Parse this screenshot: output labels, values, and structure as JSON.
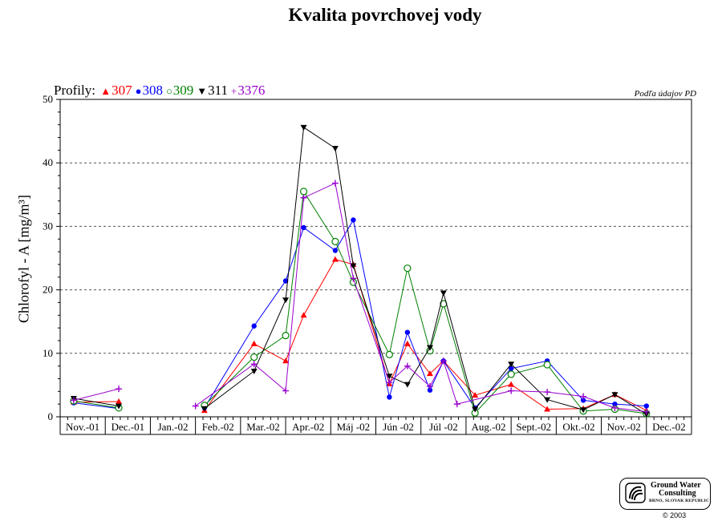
{
  "title": "Kvalita povrchovej vody",
  "source_note": "Podľa údajov PD",
  "legend": {
    "label": "Profily:",
    "items": [
      {
        "symbol": "▲",
        "name": "307",
        "color": "#ff0000"
      },
      {
        "symbol": "●",
        "name": "308",
        "color": "#0000ff"
      },
      {
        "symbol": "○",
        "name": "309",
        "color": "#008000"
      },
      {
        "symbol": "▼",
        "name": "311",
        "color": "#000000"
      },
      {
        "symbol": "+",
        "name": "3376",
        "color": "#9900cc"
      }
    ]
  },
  "logo": {
    "line1": "Ground Water",
    "line2": "Consulting",
    "line3": "BRNO, SLOVAK REPUBLIC"
  },
  "copyright": "© 2003",
  "chart_data": {
    "type": "line",
    "title": "Kvalita povrchovej vody",
    "ylabel": "Chlorofyl - A [mg/m³]",
    "xlabel": "",
    "ylim": [
      0,
      50
    ],
    "yticks": [
      0,
      10,
      20,
      30,
      40,
      50
    ],
    "grid": "horizontal dashed",
    "legend_position": "top-left",
    "categories": [
      "Nov.-01",
      "Dec.-01",
      "Jan.-02",
      "Feb.-02",
      "Mar.-02",
      "Apr.-02",
      "Máj -02",
      "Jún -02",
      "Júl -02",
      "Aug.-02",
      "Sept.-02",
      "Okt.-02",
      "Nov.-02",
      "Dec.-02"
    ],
    "series": [
      {
        "name": "307",
        "color": "#ff0000",
        "marker": "triangle-up",
        "points": [
          [
            0.3,
            2.3
          ],
          [
            1.3,
            2.4
          ],
          [
            3.2,
            1.0
          ],
          [
            4.3,
            11.5
          ],
          [
            5.0,
            8.8
          ],
          [
            5.4,
            16.0
          ],
          [
            6.1,
            24.8
          ],
          [
            6.5,
            24.0
          ],
          [
            7.3,
            5.2
          ],
          [
            7.7,
            11.5
          ],
          [
            8.2,
            6.8
          ],
          [
            8.5,
            8.8
          ],
          [
            9.2,
            3.4
          ],
          [
            10.0,
            5.1
          ],
          [
            10.8,
            1.2
          ],
          [
            11.6,
            1.3
          ],
          [
            12.3,
            3.5
          ],
          [
            13.0,
            1.0
          ]
        ],
        "breaks_after_index": [
          1
        ]
      },
      {
        "name": "308",
        "color": "#0000ff",
        "marker": "circle",
        "points": [
          [
            0.3,
            2.2
          ],
          [
            1.3,
            1.3
          ],
          [
            3.2,
            1.4
          ],
          [
            4.3,
            14.3
          ],
          [
            5.0,
            21.4
          ],
          [
            5.4,
            29.8
          ],
          [
            6.1,
            26.2
          ],
          [
            6.5,
            31.0
          ],
          [
            7.3,
            3.1
          ],
          [
            7.7,
            13.3
          ],
          [
            8.2,
            4.2
          ],
          [
            8.5,
            8.8
          ],
          [
            9.2,
            1.4
          ],
          [
            10.0,
            7.6
          ],
          [
            10.8,
            8.8
          ],
          [
            11.6,
            2.6
          ],
          [
            12.3,
            2.0
          ],
          [
            13.0,
            1.7
          ]
        ],
        "breaks_after_index": [
          1
        ]
      },
      {
        "name": "309",
        "color": "#008000",
        "marker": "open-circle",
        "points": [
          [
            0.3,
            2.5
          ],
          [
            1.3,
            1.4
          ],
          [
            3.2,
            1.8
          ],
          [
            4.3,
            9.4
          ],
          [
            5.0,
            12.8
          ],
          [
            5.4,
            35.5
          ],
          [
            6.1,
            27.6
          ],
          [
            6.5,
            21.2
          ],
          [
            7.3,
            9.8
          ],
          [
            7.7,
            23.4
          ],
          [
            8.2,
            10.4
          ],
          [
            8.5,
            17.8
          ],
          [
            9.2,
            0.6
          ],
          [
            10.0,
            6.7
          ],
          [
            10.8,
            8.2
          ],
          [
            11.6,
            0.9
          ],
          [
            12.3,
            1.2
          ],
          [
            13.0,
            0.5
          ]
        ],
        "breaks_after_index": [
          1
        ]
      },
      {
        "name": "311",
        "color": "#000000",
        "marker": "triangle-down",
        "points": [
          [
            0.3,
            2.9
          ],
          [
            1.3,
            1.7
          ],
          [
            3.2,
            1.3
          ],
          [
            4.3,
            7.2
          ],
          [
            5.0,
            18.4
          ],
          [
            5.4,
            45.6
          ],
          [
            6.1,
            42.3
          ],
          [
            6.5,
            23.8
          ],
          [
            7.3,
            6.4
          ],
          [
            7.7,
            5.1
          ],
          [
            8.2,
            10.9
          ],
          [
            8.5,
            19.5
          ],
          [
            9.2,
            1.2
          ],
          [
            10.0,
            8.3
          ],
          [
            10.8,
            2.7
          ],
          [
            11.6,
            1.1
          ],
          [
            12.3,
            3.5
          ],
          [
            13.0,
            0.4
          ]
        ],
        "breaks_after_index": [
          1
        ]
      },
      {
        "name": "3376",
        "color": "#9900cc",
        "marker": "plus",
        "points": [
          [
            0.3,
            2.6
          ],
          [
            1.3,
            4.4
          ],
          [
            3.0,
            1.7
          ],
          [
            4.3,
            8.3
          ],
          [
            5.0,
            4.1
          ],
          [
            5.4,
            34.5
          ],
          [
            6.1,
            36.8
          ],
          [
            6.5,
            21.8
          ],
          [
            7.3,
            5.4
          ],
          [
            7.7,
            8.0
          ],
          [
            8.2,
            4.8
          ],
          [
            8.5,
            8.8
          ],
          [
            8.8,
            2.0
          ],
          [
            10.0,
            4.1
          ],
          [
            10.8,
            3.9
          ],
          [
            11.6,
            3.2
          ],
          [
            12.3,
            1.4
          ],
          [
            13.0,
            0.8
          ]
        ],
        "breaks_after_index": [
          1
        ]
      }
    ]
  }
}
